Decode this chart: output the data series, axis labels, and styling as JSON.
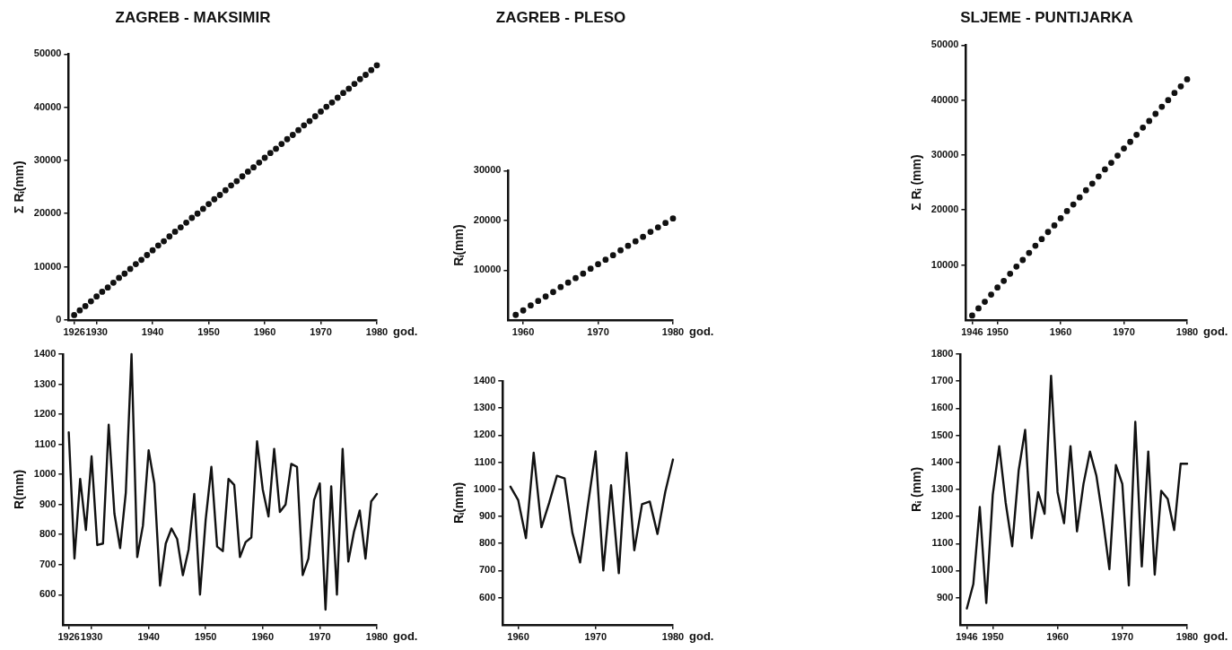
{
  "chart_data": [
    {
      "type": "scatter",
      "title": "ZAGREB - MAKSIMIR",
      "xlabel": "god.",
      "ylabel": "Σ Rᵢ(mm)",
      "marker": "circle",
      "grid": false,
      "legend": false,
      "xlim": [
        1925,
        1980
      ],
      "xticks": [
        1926,
        1930,
        1940,
        1950,
        1960,
        1970,
        1980
      ],
      "ylim": [
        0,
        50000
      ],
      "yticks": [
        0,
        10000,
        20000,
        30000,
        40000,
        50000
      ],
      "x": [
        1926,
        1927,
        1928,
        1929,
        1930,
        1931,
        1932,
        1933,
        1934,
        1935,
        1936,
        1937,
        1938,
        1939,
        1940,
        1941,
        1942,
        1943,
        1944,
        1945,
        1946,
        1947,
        1948,
        1949,
        1950,
        1951,
        1952,
        1953,
        1954,
        1955,
        1956,
        1957,
        1958,
        1959,
        1960,
        1961,
        1962,
        1963,
        1964,
        1965,
        1966,
        1967,
        1968,
        1969,
        1970,
        1971,
        1972,
        1973,
        1974,
        1975,
        1976,
        1977,
        1978,
        1979,
        1980
      ],
      "series": [
        {
          "color": "#111111",
          "values": [
            900,
            1800,
            2600,
            3500,
            4400,
            5300,
            6100,
            7000,
            7900,
            8700,
            9600,
            10500,
            11300,
            12200,
            13100,
            14000,
            14800,
            15700,
            16600,
            17400,
            18300,
            19200,
            20000,
            20900,
            21800,
            22700,
            23500,
            24400,
            25300,
            26100,
            27000,
            27900,
            28700,
            29600,
            30500,
            31400,
            32200,
            33100,
            34000,
            34800,
            35700,
            36600,
            37400,
            38300,
            39200,
            40100,
            40900,
            41800,
            42700,
            43500,
            44400,
            45300,
            46100,
            47000,
            47900
          ]
        }
      ]
    },
    {
      "type": "scatter",
      "title": "ZAGREB - PLESO",
      "xlabel": "god.",
      "ylabel": "Rᵢ(mm)",
      "marker": "circle",
      "grid": false,
      "legend": false,
      "xlim": [
        1958,
        1980
      ],
      "xticks": [
        1960,
        1970,
        1980
      ],
      "ylim": [
        0,
        30000
      ],
      "yticks": [
        10000,
        20000,
        30000
      ],
      "x": [
        1959,
        1960,
        1961,
        1962,
        1963,
        1964,
        1965,
        1966,
        1967,
        1968,
        1969,
        1970,
        1971,
        1972,
        1973,
        1974,
        1975,
        1976,
        1977,
        1978,
        1979,
        1980
      ],
      "series": [
        {
          "color": "#111111",
          "values": [
            1000,
            1900,
            2900,
            3800,
            4700,
            5600,
            6600,
            7500,
            8400,
            9300,
            10300,
            11200,
            12100,
            13000,
            14000,
            14900,
            15800,
            16700,
            17700,
            18600,
            19500,
            20400
          ]
        }
      ]
    },
    {
      "type": "scatter",
      "title": "SLJEME - PUNTIJARKA",
      "xlabel": "god.",
      "ylabel": "Σ Rᵢ (mm)",
      "marker": "circle",
      "grid": false,
      "legend": false,
      "xlim": [
        1945,
        1980
      ],
      "xticks": [
        1946,
        1950,
        1960,
        1970,
        1980
      ],
      "ylim": [
        0,
        50000
      ],
      "yticks": [
        10000,
        20000,
        30000,
        40000,
        50000
      ],
      "x": [
        1946,
        1947,
        1948,
        1949,
        1950,
        1951,
        1952,
        1953,
        1954,
        1955,
        1956,
        1957,
        1958,
        1959,
        1960,
        1961,
        1962,
        1963,
        1964,
        1965,
        1966,
        1967,
        1968,
        1969,
        1970,
        1971,
        1972,
        1973,
        1974,
        1975,
        1976,
        1977,
        1978,
        1979,
        1980
      ],
      "series": [
        {
          "color": "#111111",
          "values": [
            800,
            2100,
            3300,
            4600,
            5900,
            7100,
            8400,
            9700,
            10900,
            12200,
            13500,
            14700,
            16000,
            17200,
            18500,
            19800,
            21000,
            22300,
            23600,
            24800,
            26100,
            27400,
            28600,
            29900,
            31200,
            32400,
            33700,
            35000,
            36200,
            37500,
            38800,
            40000,
            41300,
            42500,
            43800
          ]
        }
      ]
    },
    {
      "type": "line",
      "xlabel": "god.",
      "ylabel": "R(mm)",
      "marker": "none",
      "line_style": "solid",
      "grid": false,
      "legend": false,
      "xlim": [
        1925,
        1980
      ],
      "xticks": [
        1926,
        1930,
        1940,
        1950,
        1960,
        1970,
        1980
      ],
      "ylim": [
        500,
        1400
      ],
      "yticks": [
        600,
        700,
        800,
        900,
        1000,
        1100,
        1200,
        1300,
        1400
      ],
      "x": [
        1926,
        1927,
        1928,
        1929,
        1930,
        1931,
        1932,
        1933,
        1934,
        1935,
        1936,
        1937,
        1938,
        1939,
        1940,
        1941,
        1942,
        1943,
        1944,
        1945,
        1946,
        1947,
        1948,
        1949,
        1950,
        1951,
        1952,
        1953,
        1954,
        1955,
        1956,
        1957,
        1958,
        1959,
        1960,
        1961,
        1962,
        1963,
        1964,
        1965,
        1966,
        1967,
        1968,
        1969,
        1970,
        1971,
        1972,
        1973,
        1974,
        1975,
        1976,
        1977,
        1978,
        1979,
        1980
      ],
      "series": [
        {
          "color": "#111111",
          "values": [
            1140,
            720,
            985,
            815,
            1060,
            765,
            770,
            1165,
            870,
            755,
            940,
            1400,
            725,
            830,
            1080,
            970,
            630,
            770,
            820,
            785,
            665,
            750,
            935,
            600,
            850,
            1025,
            760,
            745,
            985,
            965,
            725,
            775,
            790,
            1110,
            950,
            860,
            1085,
            875,
            900,
            1035,
            1025,
            665,
            720,
            915,
            970,
            550,
            960,
            600,
            1085,
            710,
            810,
            880,
            720,
            910,
            935
          ]
        }
      ]
    },
    {
      "type": "line",
      "xlabel": "god.",
      "ylabel": "Rᵢ(mm)",
      "marker": "none",
      "line_style": "solid",
      "grid": false,
      "legend": false,
      "xlim": [
        1958,
        1980
      ],
      "xticks": [
        1960,
        1970,
        1980
      ],
      "ylim": [
        500,
        1400
      ],
      "yticks": [
        600,
        700,
        800,
        900,
        1000,
        1100,
        1200,
        1300,
        1400
      ],
      "x": [
        1959,
        1960,
        1961,
        1962,
        1963,
        1964,
        1965,
        1966,
        1967,
        1968,
        1969,
        1970,
        1971,
        1972,
        1973,
        1974,
        1975,
        1976,
        1977,
        1978,
        1979,
        1980
      ],
      "series": [
        {
          "color": "#111111",
          "values": [
            1010,
            960,
            820,
            1135,
            860,
            950,
            1050,
            1040,
            840,
            730,
            940,
            1140,
            700,
            1015,
            690,
            1135,
            775,
            945,
            955,
            835,
            990,
            1110
          ]
        }
      ]
    },
    {
      "type": "line",
      "xlabel": "god.",
      "ylabel": "Rᵢ (mm)",
      "marker": "none",
      "line_style": "solid",
      "grid": false,
      "legend": false,
      "xlim": [
        1945,
        1980
      ],
      "xticks": [
        1946,
        1950,
        1960,
        1970,
        1980
      ],
      "ylim": [
        800,
        1800
      ],
      "yticks": [
        900,
        1000,
        1100,
        1200,
        1300,
        1400,
        1500,
        1600,
        1700,
        1800
      ],
      "x": [
        1946,
        1947,
        1948,
        1949,
        1950,
        1951,
        1952,
        1953,
        1954,
        1955,
        1956,
        1957,
        1958,
        1959,
        1960,
        1961,
        1962,
        1963,
        1964,
        1965,
        1966,
        1967,
        1968,
        1969,
        1970,
        1971,
        1972,
        1973,
        1974,
        1975,
        1976,
        1977,
        1978,
        1979,
        1980
      ],
      "series": [
        {
          "color": "#111111",
          "values": [
            860,
            950,
            1235,
            880,
            1280,
            1460,
            1250,
            1090,
            1370,
            1520,
            1120,
            1290,
            1210,
            1720,
            1290,
            1175,
            1460,
            1145,
            1320,
            1440,
            1350,
            1190,
            1005,
            1390,
            1320,
            945,
            1550,
            1015,
            1440,
            985,
            1295,
            1265,
            1150,
            1395,
            1395
          ]
        }
      ]
    }
  ]
}
